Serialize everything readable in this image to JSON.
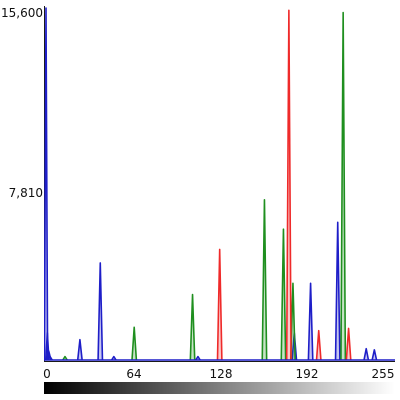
{
  "histogram": {
    "y_max_label": "15,600",
    "y_mid_label": "7,810",
    "x_tick_labels": [
      "0",
      "64",
      "128",
      "192",
      "255"
    ],
    "colors": {
      "red": "#ef2a2a",
      "green": "#1f8f1f",
      "blue": "#1e1ec8",
      "axis": "#1a1a1a"
    }
  },
  "chart_data": {
    "type": "line",
    "x_range": [
      0,
      255
    ],
    "ylim": [
      0,
      15600
    ],
    "series": [
      {
        "color": "#1e1ec8",
        "points": [
          [
            0,
            15600
          ],
          [
            1,
            1200
          ],
          [
            2,
            400
          ],
          [
            3,
            150
          ],
          [
            25,
            900
          ],
          [
            40,
            4300
          ],
          [
            50,
            150
          ],
          [
            112,
            150
          ],
          [
            183,
            1200
          ],
          [
            195,
            3400
          ],
          [
            215,
            6100
          ],
          [
            236,
            500
          ],
          [
            242,
            450
          ]
        ]
      },
      {
        "color": "#1f8f1f",
        "points": [
          [
            14,
            150
          ],
          [
            65,
            1450
          ],
          [
            108,
            2900
          ],
          [
            161,
            7100
          ],
          [
            175,
            5800
          ],
          [
            182,
            3400
          ],
          [
            219,
            15400
          ]
        ]
      },
      {
        "color": "#ef2a2a",
        "points": [
          [
            128,
            4900
          ],
          [
            179,
            15500
          ],
          [
            201,
            1300
          ],
          [
            223,
            1400
          ]
        ]
      }
    ]
  }
}
